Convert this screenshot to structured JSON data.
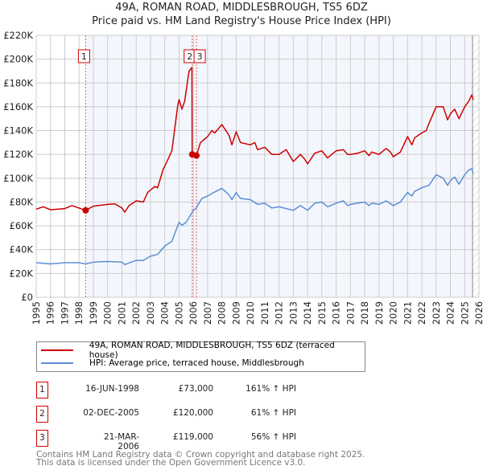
{
  "chart_data": {
    "type": "line",
    "title": "49A, ROMAN ROAD, MIDDLESBROUGH, TS5 6DZ",
    "subtitle": "Price paid vs. HM Land Registry's House Price Index (HPI)",
    "xlim": [
      1995,
      2026
    ],
    "ylim": [
      0,
      220000
    ],
    "x_ticks": [
      "1995",
      "1996",
      "1997",
      "1998",
      "1999",
      "2000",
      "2001",
      "2002",
      "2003",
      "2004",
      "2005",
      "2006",
      "2007",
      "2008",
      "2009",
      "2010",
      "2011",
      "2012",
      "2013",
      "2014",
      "2015",
      "2016",
      "2017",
      "2018",
      "2019",
      "2020",
      "2021",
      "2022",
      "2023",
      "2024",
      "2025",
      "2026"
    ],
    "y_ticks": [
      {
        "v": 0,
        "label": "£0"
      },
      {
        "v": 20000,
        "label": "£20K"
      },
      {
        "v": 40000,
        "label": "£40K"
      },
      {
        "v": 60000,
        "label": "£60K"
      },
      {
        "v": 80000,
        "label": "£80K"
      },
      {
        "v": 100000,
        "label": "£100K"
      },
      {
        "v": 120000,
        "label": "£120K"
      },
      {
        "v": 140000,
        "label": "£140K"
      },
      {
        "v": 160000,
        "label": "£160K"
      },
      {
        "v": 180000,
        "label": "£180K"
      },
      {
        "v": 200000,
        "label": "£200K"
      },
      {
        "v": 220000,
        "label": "£220K"
      }
    ],
    "grid": true,
    "series": [
      {
        "name": "49A, ROMAN ROAD, MIDDLESBROUGH, TS5 6DZ (terraced house)",
        "color": "#cc0000",
        "x": [
          1995,
          1995.5,
          1996,
          1997,
          1997.5,
          1998,
          1998.46,
          1999,
          2000,
          2000.5,
          2001,
          2001.2,
          2001.5,
          2002,
          2002.5,
          2002.8,
          2003.3,
          2003.5,
          2003.9,
          2004,
          2004.5,
          2004.9,
          2005,
          2005.2,
          2005.4,
          2005.7,
          2005.9,
          2005.92,
          2006.22,
          2006.5,
          2007,
          2007.3,
          2007.5,
          2008,
          2008.5,
          2008.7,
          2009,
          2009.3,
          2010,
          2010.3,
          2010.5,
          2011,
          2011.5,
          2012,
          2012.5,
          2013,
          2013.5,
          2013.8,
          2014,
          2014.5,
          2015,
          2015.4,
          2016,
          2016.5,
          2016.8,
          2017,
          2017.5,
          2018,
          2018.3,
          2018.5,
          2019,
          2019.5,
          2019.8,
          2020,
          2020.5,
          2021,
          2021.3,
          2021.5,
          2022,
          2022.3,
          2022.5,
          2023,
          2023.5,
          2023.8,
          2024,
          2024.3,
          2024.6,
          2025,
          2025.3,
          2025.5,
          2025.6
        ],
        "y": [
          74000,
          76000,
          73500,
          74500,
          77000,
          75000,
          73000,
          76500,
          78000,
          78500,
          75000,
          71500,
          77000,
          81000,
          80000,
          88000,
          93000,
          92000,
          108000,
          110000,
          123000,
          160000,
          166000,
          158000,
          165000,
          190000,
          193000,
          120000,
          119000,
          130000,
          135000,
          140000,
          138000,
          145000,
          136000,
          128000,
          139000,
          130000,
          128000,
          130000,
          124000,
          126000,
          120000,
          120000,
          124000,
          114000,
          120000,
          116000,
          112000,
          121000,
          123000,
          117000,
          123000,
          124000,
          120000,
          120000,
          121000,
          123000,
          119000,
          122000,
          120000,
          125000,
          122000,
          118000,
          122000,
          135000,
          128000,
          134000,
          138000,
          140000,
          146000,
          160000,
          160000,
          149000,
          154000,
          158000,
          150000,
          160000,
          165000,
          170000,
          166000
        ]
      },
      {
        "name": "HPI: Average price, terraced house, Middlesbrough",
        "color": "#5b8fd4",
        "x": [
          1995,
          1996,
          1997,
          1998,
          1998.46,
          1999,
          2000,
          2001,
          2001.2,
          2002,
          2002.5,
          2003,
          2003.5,
          2004,
          2004.5,
          2005,
          2005.2,
          2005.5,
          2006,
          2006.2,
          2006.6,
          2007,
          2007.5,
          2008,
          2008.5,
          2008.7,
          2009,
          2009.3,
          2010,
          2010.5,
          2011,
          2011.5,
          2012,
          2013,
          2013.5,
          2014,
          2014.5,
          2015,
          2015.4,
          2016,
          2016.5,
          2016.8,
          2017,
          2018,
          2018.3,
          2018.5,
          2019,
          2019.5,
          2020,
          2020.5,
          2021,
          2021.3,
          2021.5,
          2022,
          2022.5,
          2023,
          2023.5,
          2023.8,
          2024,
          2024.3,
          2024.6,
          2025,
          2025.3,
          2025.5,
          2025.6
        ],
        "y": [
          29000,
          28000,
          29000,
          29000,
          28000,
          29500,
          30000,
          29500,
          27500,
          31000,
          31000,
          34500,
          36000,
          43000,
          47000,
          63000,
          60500,
          63000,
          73000,
          75000,
          83000,
          85000,
          88500,
          91500,
          86000,
          82000,
          88000,
          83000,
          82000,
          78000,
          79000,
          75000,
          76000,
          73000,
          77000,
          73000,
          79000,
          80000,
          76000,
          79000,
          81000,
          77000,
          78000,
          80000,
          77000,
          79000,
          78000,
          81000,
          77000,
          80000,
          88000,
          85000,
          89000,
          92000,
          94000,
          103000,
          100000,
          94000,
          98000,
          101000,
          95000,
          103000,
          107000,
          108000,
          104000
        ]
      }
    ],
    "sales": [
      {
        "label": "1",
        "x": 1998.46,
        "y": 73000,
        "date": "16-JUN-1998",
        "price": "£73,000",
        "hpi": "161% ↑ HPI"
      },
      {
        "label": "2",
        "x": 2005.92,
        "y": 120000,
        "date": "02-DEC-2005",
        "price": "£120,000",
        "hpi": "61% ↑ HPI"
      },
      {
        "label": "3",
        "x": 2006.22,
        "y": 119000,
        "date": "21-MAR-2006",
        "price": "£119,000",
        "hpi": "56% ↑ HPI"
      }
    ],
    "data_end": 2025.55
  },
  "footer": {
    "line1": "Contains HM Land Registry data © Crown copyright and database right 2025.",
    "line2": "This data is licensed under the Open Government Licence v3.0."
  }
}
